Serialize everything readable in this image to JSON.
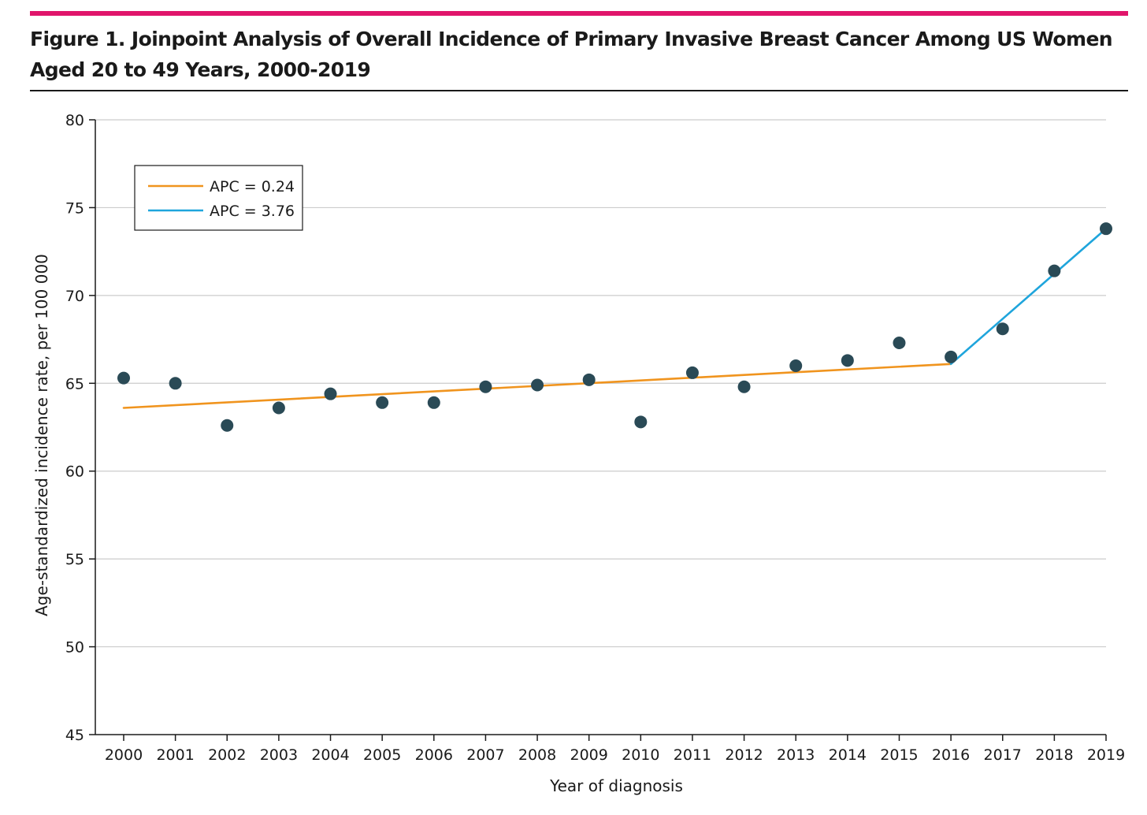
{
  "figure": {
    "title": "Figure 1. Joinpoint Analysis of Overall Incidence of Primary Invasive Breast Cancer Among US Women Aged 20 to 49 Years, 2000-2019"
  },
  "colors": {
    "accent_bar": "#e0156b",
    "points": "#2a4a56",
    "segment_1": "#f0941e",
    "segment_2": "#1fa5dc",
    "grid": "#cccccc"
  },
  "chart_data": {
    "type": "scatter",
    "xlabel": "Year of diagnosis",
    "ylabel": "Age-standardized incidence rate, per 100 000",
    "ylim": [
      45,
      80
    ],
    "yticks": [
      45,
      50,
      55,
      60,
      65,
      70,
      75,
      80
    ],
    "x": [
      2000,
      2001,
      2002,
      2003,
      2004,
      2005,
      2006,
      2007,
      2008,
      2009,
      2010,
      2011,
      2012,
      2013,
      2014,
      2015,
      2016,
      2017,
      2018,
      2019
    ],
    "grid": "horizontal",
    "legend_position": "top-left",
    "series": [
      {
        "kind": "points",
        "x": [
          2000,
          2001,
          2002,
          2003,
          2004,
          2005,
          2006,
          2007,
          2008,
          2009,
          2010,
          2011,
          2012,
          2013,
          2014,
          2015,
          2016,
          2017,
          2018,
          2019
        ],
        "values": [
          65.3,
          65.0,
          62.6,
          63.6,
          64.4,
          63.9,
          63.9,
          64.8,
          64.9,
          65.2,
          62.8,
          65.6,
          64.8,
          66.0,
          66.3,
          67.3,
          66.5,
          68.1,
          71.4,
          73.8
        ]
      },
      {
        "kind": "line",
        "name": "APC = 0.24",
        "x": [
          2000,
          2016
        ],
        "values": [
          63.6,
          66.1
        ]
      },
      {
        "kind": "line",
        "name": "APC = 3.76",
        "x": [
          2016,
          2019
        ],
        "values": [
          66.1,
          73.8
        ]
      }
    ]
  }
}
